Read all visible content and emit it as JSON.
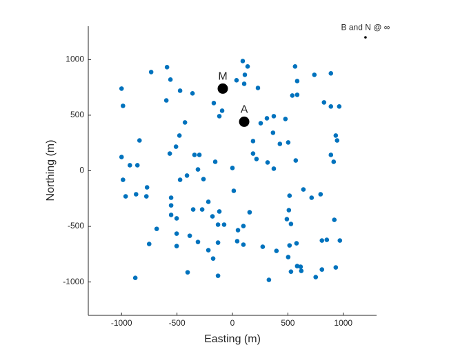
{
  "chart_data": {
    "type": "scatter",
    "xlabel": "Easting (m)",
    "ylabel": "Northing (m)",
    "color": "#0072bd",
    "x": [
      93,
      137,
      112,
      37,
      106,
      230,
      -733,
      -590,
      -559,
      -1000,
      -472,
      -360,
      -987,
      -596,
      -428,
      -168,
      -93,
      -118,
      565,
      739,
      888,
      584,
      540,
      584,
      826,
      888,
      963,
      311,
      373,
      255,
      478,
      366,
      186,
      428,
      503,
      932,
      944,
      -838,
      -478,
      -565,
      -509,
      -342,
      -298,
      -1000,
      -925,
      -857,
      -155,
      0,
      186,
      217,
      373,
      317,
      571,
      888,
      913,
      -987,
      -311,
      -472,
      -410,
      -261,
      12,
      -963,
      -869,
      -770,
      -776,
      -553,
      -553,
      -217,
      640,
      714,
      795,
      515,
      -553,
      -503,
      -118,
      -354,
      -273,
      -180,
      155,
      509,
      491,
      528,
      919,
      -130,
      -75,
      50,
      99,
      -683,
      -385,
      -503,
      -311,
      -751,
      -503,
      -217,
      -174,
      -130,
      43,
      99,
      273,
      397,
      515,
      578,
      807,
      851,
      969,
      503,
      615,
      584,
      621,
      528,
      807,
      932,
      751,
      -876,
      -404,
      -130,
      329
    ],
    "y": [
      987,
      938,
      863,
      814,
      782,
      745,
      888,
      932,
      820,
      739,
      720,
      696,
      584,
      633,
      435,
      609,
      540,
      491,
      938,
      863,
      876,
      807,
      677,
      683,
      615,
      578,
      578,
      472,
      491,
      428,
      466,
      342,
      267,
      242,
      255,
      317,
      273,
      273,
      317,
      155,
      217,
      143,
      143,
      124,
      50,
      50,
      81,
      25,
      155,
      106,
      19,
      75,
      93,
      143,
      81,
      -81,
      12,
      -81,
      -43,
      -75,
      -180,
      -230,
      -211,
      -149,
      -230,
      -242,
      -311,
      -279,
      -168,
      -242,
      -211,
      -224,
      -397,
      -428,
      -366,
      -348,
      -348,
      -410,
      -373,
      -354,
      -435,
      -478,
      -441,
      -484,
      -484,
      -534,
      -497,
      -522,
      -584,
      -565,
      -640,
      -658,
      -677,
      -714,
      -789,
      -646,
      -633,
      -664,
      -683,
      -720,
      -671,
      -652,
      -627,
      -621,
      -627,
      -776,
      -863,
      -857,
      -900,
      -907,
      -888,
      -869,
      -956,
      -963,
      -913,
      -944,
      -981
    ],
    "xlim": [
      -1300,
      1300
    ],
    "ylim": [
      -1300,
      1300
    ],
    "xticks": [
      -1000,
      -500,
      0,
      500,
      1000
    ],
    "yticks": [
      -1000,
      -500,
      0,
      500,
      1000
    ],
    "special_points": [
      {
        "label": "M",
        "x": -87,
        "y": 739,
        "color": "#000000",
        "size": "large"
      },
      {
        "label": "A",
        "x": 106,
        "y": 441,
        "color": "#000000",
        "size": "large"
      },
      {
        "label": "B and N @ ∞",
        "x": 1200,
        "y": 1200,
        "color": "#000000",
        "size": "small"
      }
    ]
  }
}
